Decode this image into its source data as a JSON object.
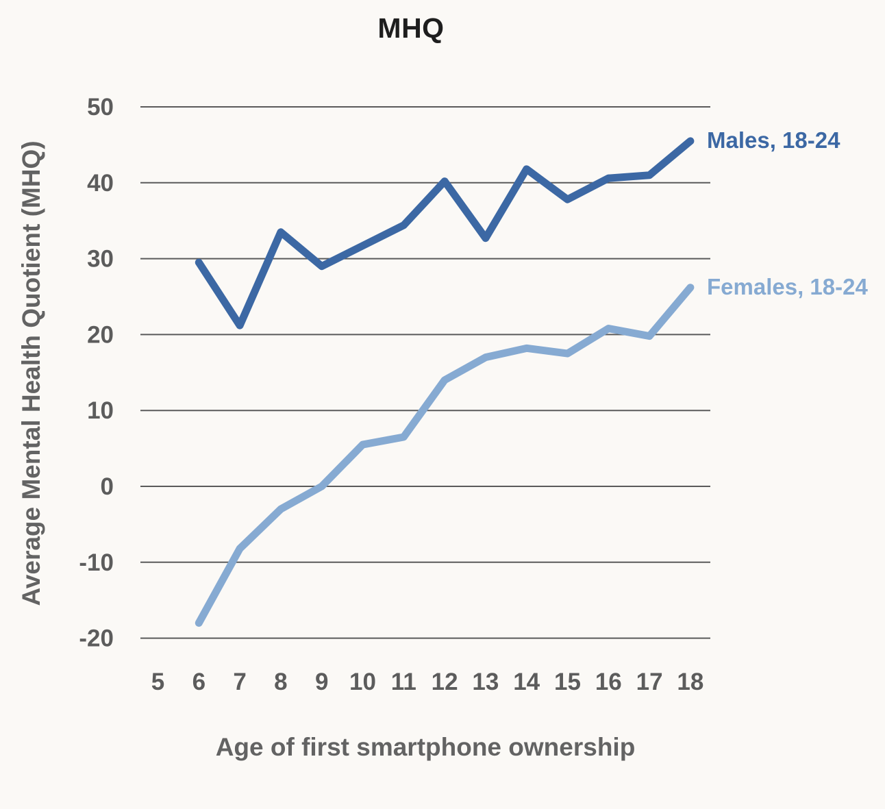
{
  "chart_data": {
    "type": "line",
    "title": "MHQ",
    "xlabel": "Age of first smartphone ownership",
    "ylabel": "Average Mental Health Quotient (MHQ)",
    "x": [
      6,
      7,
      8,
      9,
      10,
      11,
      12,
      13,
      14,
      15,
      16,
      17,
      18
    ],
    "series": [
      {
        "name": "Males, 18-24",
        "color": "#3c68a4",
        "values": [
          29.5,
          21.2,
          33.5,
          29.0,
          31.7,
          34.4,
          40.2,
          32.7,
          41.8,
          37.8,
          40.6,
          41.0,
          45.5
        ]
      },
      {
        "name": "Females, 18-24",
        "color": "#86aad2",
        "values": [
          -18.0,
          -8.2,
          -3.0,
          0.0,
          5.5,
          6.5,
          14.0,
          17.0,
          18.2,
          17.5,
          20.8,
          19.8,
          26.2
        ]
      }
    ],
    "x_ticks": [
      5,
      6,
      7,
      8,
      9,
      10,
      11,
      12,
      13,
      14,
      15,
      16,
      17,
      18
    ],
    "y_ticks": [
      -20,
      -10,
      0,
      10,
      20,
      30,
      40,
      50
    ],
    "ylim": [
      -20,
      50
    ],
    "xlim": [
      5,
      18
    ],
    "grid": "horizontal",
    "legend_position": "right-of-line-ends",
    "colors": {
      "background": "#fbf9f6",
      "grid": "#5a5a5a",
      "tick_text": "#5c5c5c",
      "axis_title_text": "#636363",
      "title_text": "#1e1e1e"
    }
  }
}
